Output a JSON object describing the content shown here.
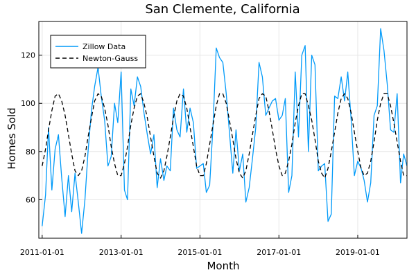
{
  "chart_data": {
    "type": "line",
    "title": "San Clemente, California",
    "xlabel": "Month",
    "ylabel": "Homes Sold",
    "x_start": "2011-01-01",
    "x_end": "2019-12-01",
    "xlim": [
      "2010-12-01",
      "2020-04-01"
    ],
    "ylim": [
      44,
      134
    ],
    "x_ticks": [
      "2011-01-01",
      "2013-01-01",
      "2015-01-01",
      "2017-01-01",
      "2019-01-01"
    ],
    "y_ticks": [
      60,
      80,
      100,
      120
    ],
    "grid": true,
    "legend_position": "top-left",
    "series": [
      {
        "name": "Zillow Data",
        "color": "#009af9",
        "style": "solid",
        "values": [
          49,
          62,
          90,
          64,
          81,
          87,
          69,
          53,
          70,
          55,
          71,
          59,
          46,
          60,
          80,
          97,
          107,
          115,
          103,
          93,
          74,
          78,
          100,
          92,
          113,
          64,
          60,
          106,
          99,
          111,
          107,
          96,
          87,
          79,
          87,
          65,
          77,
          68,
          74,
          72,
          98,
          89,
          86,
          106,
          88,
          98,
          92,
          73,
          74,
          75,
          63,
          66,
          90,
          123,
          119,
          117,
          104,
          88,
          71,
          89,
          72,
          79,
          59,
          65,
          77,
          90,
          117,
          111,
          95,
          98,
          101,
          102,
          93,
          95,
          102,
          63,
          70,
          113,
          86,
          120,
          124,
          80,
          120,
          116,
          72,
          74,
          75,
          51,
          54,
          103,
          102,
          111,
          101,
          113,
          93,
          70,
          76,
          73,
          68,
          59,
          67,
          95,
          99,
          131,
          122,
          108,
          89,
          88,
          104,
          67,
          79,
          74
        ]
      },
      {
        "name": "Newton-Gauss",
        "color": "#000000",
        "style": "dashed",
        "values": [
          74,
          81,
          89,
          97,
          103,
          104,
          101,
          95,
          87,
          79,
          72,
          70,
          72,
          78,
          86,
          94,
          101,
          104,
          103,
          98,
          91,
          82,
          75,
          70,
          70,
          75,
          82,
          91,
          98,
          103,
          104,
          100,
          94,
          86,
          78,
          71,
          69,
          72,
          78,
          86,
          94,
          101,
          104,
          103,
          98,
          90,
          82,
          74,
          70,
          70,
          75,
          83,
          91,
          99,
          104,
          104,
          100,
          93,
          85,
          77,
          71,
          69,
          72,
          79,
          87,
          95,
          102,
          104,
          103,
          97,
          89,
          81,
          74,
          70,
          71,
          76,
          83,
          92,
          99,
          104,
          104,
          99,
          93,
          85,
          76,
          71,
          69,
          73,
          80,
          88,
          96,
          102,
          104,
          102,
          96,
          88,
          80,
          73,
          70,
          71,
          76,
          84,
          93,
          100,
          104,
          104,
          99,
          92,
          84,
          76,
          70,
          70
        ]
      }
    ]
  }
}
